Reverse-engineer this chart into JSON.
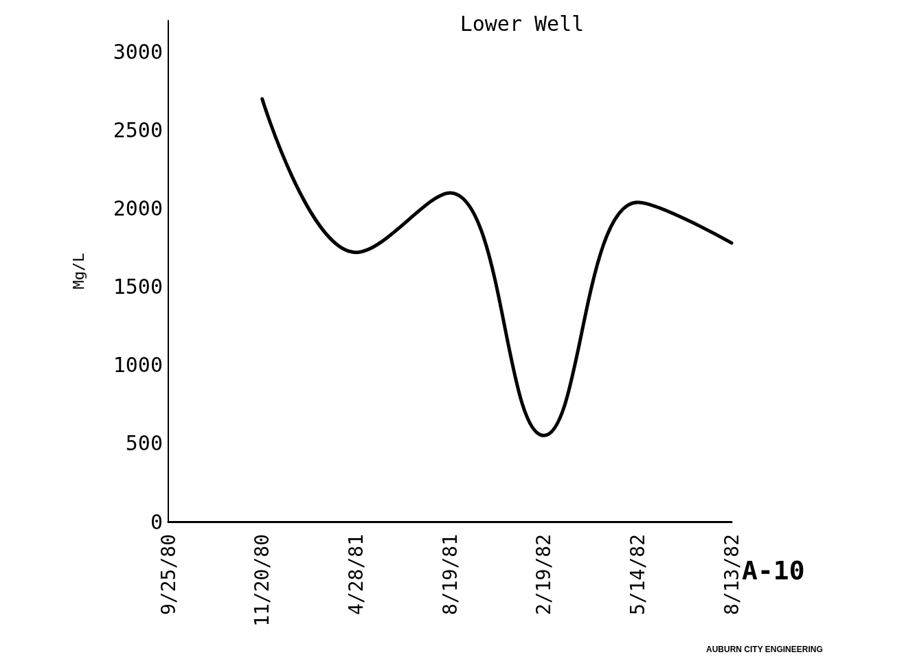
{
  "chart_data": {
    "type": "line",
    "title": "Lower Well",
    "ylabel": "Mg/L",
    "categories": [
      "9/25/80",
      "11/20/80",
      "4/28/81",
      "8/19/81",
      "2/19/82",
      "5/14/82",
      "8/13/82"
    ],
    "series": [
      {
        "color": "#000000",
        "values": [
          null,
          2700,
          1720,
          2100,
          550,
          2040,
          1780
        ]
      }
    ],
    "ylim": [
      0,
      3200
    ],
    "yticks": [
      0,
      500,
      1000,
      1500,
      2000,
      2500,
      3000
    ],
    "grid": false,
    "marker": "none",
    "line_style": "solid",
    "annotations": [
      "A-10",
      "AUBURN CITY ENGINEERING"
    ]
  }
}
